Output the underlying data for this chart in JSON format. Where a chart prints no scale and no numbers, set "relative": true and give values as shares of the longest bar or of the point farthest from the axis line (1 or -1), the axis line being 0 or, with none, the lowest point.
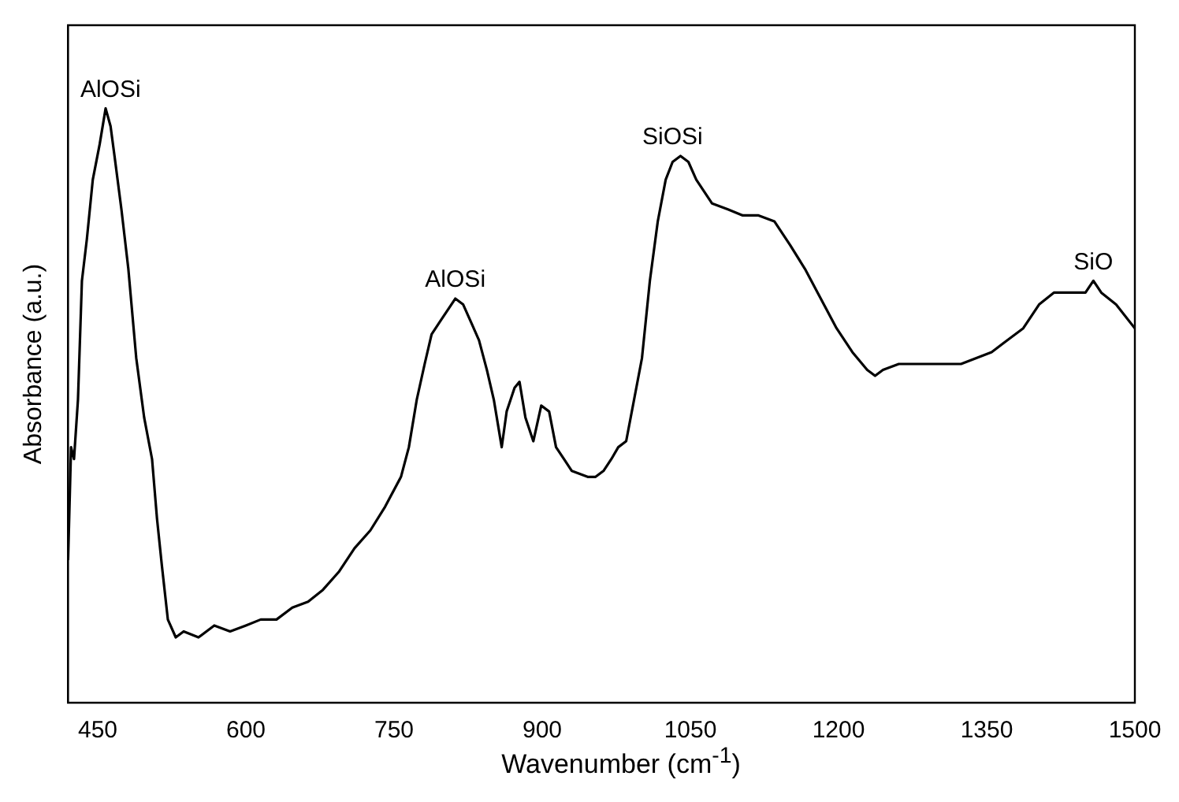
{
  "chart_data": {
    "type": "line",
    "xlabel": "Wavenumber (cm$^{-1}$)",
    "ylabel": "Absorbance (a.u.)",
    "relative": true,
    "xlim": [
      420,
      1500
    ],
    "xticks": [
      450,
      600,
      750,
      900,
      1050,
      1200,
      1350,
      1500
    ],
    "grid": false,
    "legend": false,
    "marker": "none",
    "line_style": "solid",
    "annotations": [
      {
        "text": "AlOSi",
        "x": 463,
        "y": 1.0
      },
      {
        "text": "AlOSi",
        "x": 812,
        "y": 0.68
      },
      {
        "text": "SiOSi",
        "x": 1032,
        "y": 0.92
      },
      {
        "text": "SiO",
        "x": 1458,
        "y": 0.71
      }
    ],
    "series": [
      {
        "color": "#000000",
        "x": [
          420,
          423,
          426,
          430,
          434,
          439,
          445,
          452,
          458,
          463,
          467,
          474,
          481,
          489,
          497,
          505,
          510,
          515,
          521,
          529,
          537,
          552,
          568,
          584,
          600,
          615,
          631,
          647,
          663,
          678,
          694,
          710,
          726,
          741,
          757,
          765,
          773,
          781,
          788,
          796,
          804,
          812,
          820,
          828,
          836,
          844,
          851,
          859,
          864,
          872,
          877,
          883,
          891,
          899,
          907,
          914,
          922,
          930,
          946,
          954,
          962,
          970,
          977,
          985,
          993,
          1001,
          1009,
          1017,
          1025,
          1032,
          1040,
          1048,
          1056,
          1072,
          1088,
          1103,
          1119,
          1135,
          1151,
          1166,
          1182,
          1198,
          1214,
          1229,
          1237,
          1245,
          1261,
          1292,
          1324,
          1355,
          1371,
          1387,
          1403,
          1418,
          1434,
          1450,
          1458,
          1466,
          1481,
          1500
        ],
        "values": [
          0.24,
          0.43,
          0.41,
          0.51,
          0.71,
          0.78,
          0.88,
          0.94,
          1.0,
          0.97,
          0.92,
          0.83,
          0.73,
          0.58,
          0.48,
          0.41,
          0.31,
          0.23,
          0.14,
          0.11,
          0.12,
          0.11,
          0.13,
          0.12,
          0.13,
          0.14,
          0.14,
          0.16,
          0.17,
          0.19,
          0.22,
          0.26,
          0.29,
          0.33,
          0.38,
          0.43,
          0.51,
          0.57,
          0.62,
          0.64,
          0.66,
          0.68,
          0.67,
          0.64,
          0.61,
          0.56,
          0.51,
          0.43,
          0.49,
          0.53,
          0.54,
          0.48,
          0.44,
          0.5,
          0.49,
          0.43,
          0.41,
          0.39,
          0.38,
          0.38,
          0.39,
          0.41,
          0.43,
          0.44,
          0.51,
          0.58,
          0.71,
          0.81,
          0.88,
          0.91,
          0.92,
          0.91,
          0.88,
          0.84,
          0.83,
          0.82,
          0.82,
          0.81,
          0.77,
          0.73,
          0.68,
          0.63,
          0.59,
          0.56,
          0.55,
          0.56,
          0.57,
          0.57,
          0.57,
          0.59,
          0.61,
          0.63,
          0.67,
          0.69,
          0.69,
          0.69,
          0.71,
          0.69,
          0.67,
          0.63
        ]
      }
    ]
  }
}
